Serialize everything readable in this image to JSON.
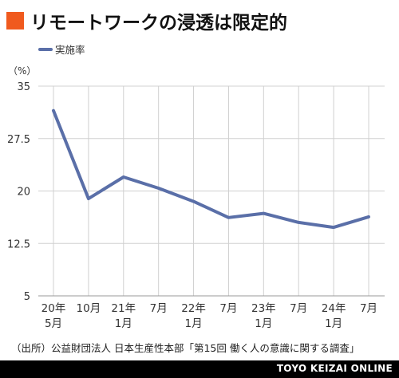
{
  "header": {
    "title": "リモートワークの浸透は限定的"
  },
  "chart_data": {
    "type": "line",
    "y_unit_label": "（%）",
    "ylim": [
      5,
      35
    ],
    "yticks": [
      5,
      12.5,
      20,
      27.5,
      35
    ],
    "ytick_labels": [
      "5",
      "12.5",
      "20",
      "27.5",
      "35"
    ],
    "categories": [
      [
        "20年",
        "5月"
      ],
      [
        "10月",
        ""
      ],
      [
        "21年",
        "1月"
      ],
      [
        "7月",
        ""
      ],
      [
        "22年",
        "1月"
      ],
      [
        "7月",
        ""
      ],
      [
        "23年",
        "1月"
      ],
      [
        "7月",
        ""
      ],
      [
        "24年",
        "1月"
      ],
      [
        "7月",
        ""
      ]
    ],
    "series": [
      {
        "name": "実施率",
        "color": "#5a6fa8",
        "values": [
          31.5,
          18.9,
          22.0,
          20.4,
          18.5,
          16.2,
          16.8,
          15.5,
          14.8,
          16.3
        ]
      }
    ],
    "grid": true,
    "legend": "top-left"
  },
  "source": "（出所）公益財団法人 日本生産性本部「第15回 働く人の意識に関する調査」",
  "footer": {
    "brand": "TOYO KEIZAI ONLINE"
  },
  "colors": {
    "accent": "#f05a1e",
    "series": "#5a6fa8",
    "grid": "#d0d0d0"
  }
}
